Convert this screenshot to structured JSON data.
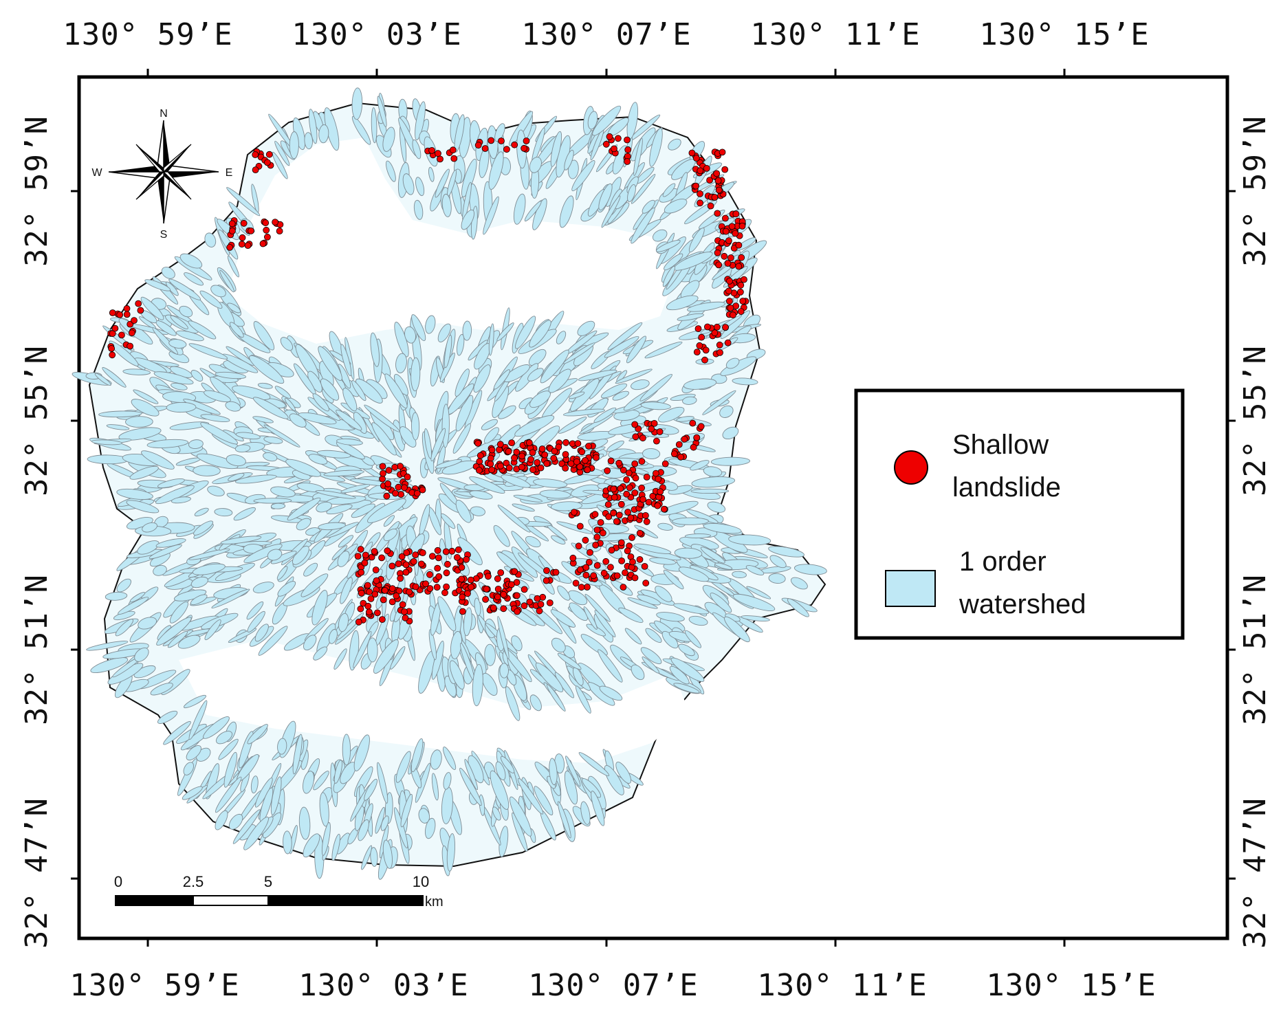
{
  "top_labels": [
    "130° 59’E",
    "130° 03’E",
    "130° 07’E",
    "130° 11’E",
    "130° 15’E"
  ],
  "bottom_labels": [
    "130° 59’E",
    "130° 03’E",
    "130° 07’E",
    "130° 11’E",
    "130° 15’E"
  ],
  "left_labels": [
    "32° 59’N",
    "32° 55’N",
    "32° 51’N",
    "32° 47’N"
  ],
  "right_labels": [
    "32° 59’N",
    "32° 55’N",
    "32° 51’N",
    "32° 47’N"
  ],
  "compass": {
    "n": "N",
    "s": "S",
    "e": "E",
    "w": "W"
  },
  "scale_bar": {
    "labels": [
      "0",
      "2.5",
      "5",
      "10"
    ],
    "unit": "km"
  },
  "legend": {
    "items": [
      {
        "label_line1": "Shallow",
        "label_line2": "landslide",
        "symbol": "circle",
        "color": "#ee0000"
      },
      {
        "label_line1": "1 order",
        "label_line2": "watershed",
        "symbol": "rect",
        "color": "#bfe8f5"
      }
    ]
  },
  "colors": {
    "landslide": "#ee0000",
    "watershed": "#bfe8f5",
    "watershed_edge": "#7f8c94"
  }
}
